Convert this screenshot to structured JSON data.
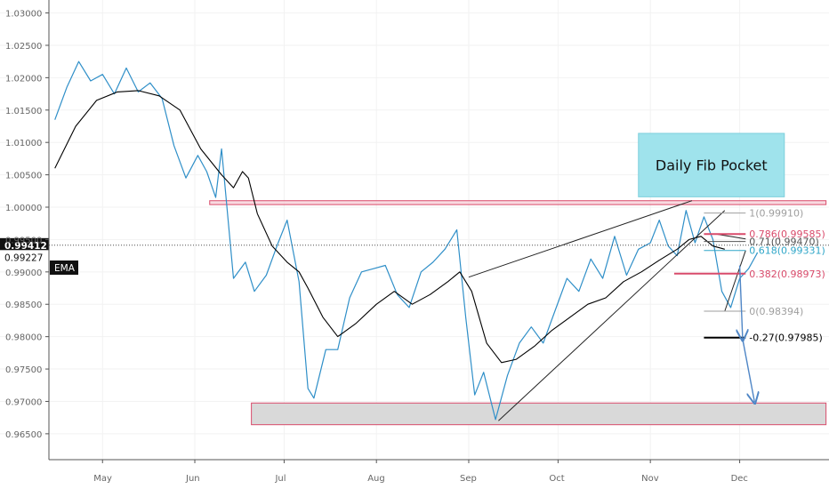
{
  "chart_data": {
    "type": "line",
    "title": "",
    "xlabel": "",
    "ylabel": "",
    "x_range": [
      "2019-04-13",
      "2019-12-31"
    ],
    "ylim": [
      0.961,
      1.032
    ],
    "y_ticks": [
      "1.03000",
      "1.02500",
      "1.02000",
      "1.01500",
      "1.01000",
      "1.00500",
      "1.00000",
      "0.99500",
      "0.99000",
      "0.98500",
      "0.98000",
      "0.97500",
      "0.97000",
      "0.96500"
    ],
    "x_ticks": [
      {
        "date": "2019-05-01",
        "label": "May"
      },
      {
        "date": "2019-06-01",
        "label": "Jun"
      },
      {
        "date": "2019-07-01",
        "label": "Jul"
      },
      {
        "date": "2019-08-01",
        "label": "Aug"
      },
      {
        "date": "2019-09-01",
        "label": "Sep"
      },
      {
        "date": "2019-10-01",
        "label": "Oct"
      },
      {
        "date": "2019-11-01",
        "label": "Nov"
      },
      {
        "date": "2019-12-01",
        "label": "Dec"
      }
    ],
    "series": [
      {
        "color": "#2f8fc8",
        "points": [
          [
            "2019-04-15",
            1.0135
          ],
          [
            "2019-04-19",
            1.0185
          ],
          [
            "2019-04-23",
            1.0225
          ],
          [
            "2019-04-27",
            1.0195
          ],
          [
            "2019-05-01",
            1.0205
          ],
          [
            "2019-05-05",
            1.0175
          ],
          [
            "2019-05-09",
            1.0215
          ],
          [
            "2019-05-13",
            1.0178
          ],
          [
            "2019-05-17",
            1.0192
          ],
          [
            "2019-05-21",
            1.0168
          ],
          [
            "2019-05-25",
            1.0095
          ],
          [
            "2019-05-29",
            1.0045
          ],
          [
            "2019-06-02",
            1.008
          ],
          [
            "2019-06-05",
            1.0055
          ],
          [
            "2019-06-08",
            1.0015
          ],
          [
            "2019-06-10",
            1.009
          ],
          [
            "2019-06-14",
            0.989
          ],
          [
            "2019-06-18",
            0.9915
          ],
          [
            "2019-06-21",
            0.987
          ],
          [
            "2019-06-25",
            0.9895
          ],
          [
            "2019-06-29",
            0.9945
          ],
          [
            "2019-07-02",
            0.998
          ],
          [
            "2019-07-06",
            0.9885
          ],
          [
            "2019-07-09",
            0.972
          ],
          [
            "2019-07-11",
            0.9705
          ],
          [
            "2019-07-15",
            0.978
          ],
          [
            "2019-07-19",
            0.978
          ],
          [
            "2019-07-23",
            0.986
          ],
          [
            "2019-07-27",
            0.99
          ],
          [
            "2019-07-31",
            0.9905
          ],
          [
            "2019-08-04",
            0.991
          ],
          [
            "2019-08-08",
            0.9865
          ],
          [
            "2019-08-12",
            0.9845
          ],
          [
            "2019-08-16",
            0.99
          ],
          [
            "2019-08-20",
            0.9915
          ],
          [
            "2019-08-24",
            0.9935
          ],
          [
            "2019-08-28",
            0.9965
          ],
          [
            "2019-08-31",
            0.983
          ],
          [
            "2019-09-03",
            0.971
          ],
          [
            "2019-09-06",
            0.9745
          ],
          [
            "2019-09-10",
            0.9672
          ],
          [
            "2019-09-14",
            0.974
          ],
          [
            "2019-09-18",
            0.979
          ],
          [
            "2019-09-22",
            0.9815
          ],
          [
            "2019-09-26",
            0.979
          ],
          [
            "2019-09-30",
            0.984
          ],
          [
            "2019-10-04",
            0.989
          ],
          [
            "2019-10-08",
            0.987
          ],
          [
            "2019-10-12",
            0.992
          ],
          [
            "2019-10-16",
            0.989
          ],
          [
            "2019-10-20",
            0.9955
          ],
          [
            "2019-10-24",
            0.9895
          ],
          [
            "2019-10-28",
            0.9935
          ],
          [
            "2019-11-01",
            0.9945
          ],
          [
            "2019-11-04",
            0.998
          ],
          [
            "2019-11-07",
            0.994
          ],
          [
            "2019-11-10",
            0.9925
          ],
          [
            "2019-11-13",
            0.9995
          ],
          [
            "2019-11-16",
            0.9945
          ],
          [
            "2019-11-19",
            0.9985
          ],
          [
            "2019-11-22",
            0.995
          ],
          [
            "2019-11-25",
            0.987
          ],
          [
            "2019-11-28",
            0.9845
          ],
          [
            "2019-12-01",
            0.989
          ],
          [
            "2019-12-04",
            0.9905
          ],
          [
            "2019-12-07",
            0.993
          ]
        ]
      },
      {
        "name": "EMA",
        "color": "#000000",
        "points": [
          [
            "2019-04-15",
            1.006
          ],
          [
            "2019-04-22",
            1.0125
          ],
          [
            "2019-04-29",
            1.0165
          ],
          [
            "2019-05-06",
            1.0178
          ],
          [
            "2019-05-13",
            1.018
          ],
          [
            "2019-05-20",
            1.0172
          ],
          [
            "2019-05-27",
            1.015
          ],
          [
            "2019-06-03",
            1.009
          ],
          [
            "2019-06-10",
            1.005
          ],
          [
            "2019-06-14",
            1.003
          ],
          [
            "2019-06-17",
            1.0055
          ],
          [
            "2019-06-19",
            1.0045
          ],
          [
            "2019-06-22",
            0.999
          ],
          [
            "2019-06-27",
            0.994
          ],
          [
            "2019-07-02",
            0.9915
          ],
          [
            "2019-07-06",
            0.99
          ],
          [
            "2019-07-09",
            0.9875
          ],
          [
            "2019-07-14",
            0.983
          ],
          [
            "2019-07-19",
            0.98
          ],
          [
            "2019-07-25",
            0.982
          ],
          [
            "2019-08-01",
            0.985
          ],
          [
            "2019-08-07",
            0.987
          ],
          [
            "2019-08-13",
            0.985
          ],
          [
            "2019-08-19",
            0.9865
          ],
          [
            "2019-08-25",
            0.9885
          ],
          [
            "2019-08-29",
            0.99
          ],
          [
            "2019-09-02",
            0.987
          ],
          [
            "2019-09-07",
            0.979
          ],
          [
            "2019-09-12",
            0.976
          ],
          [
            "2019-09-17",
            0.9765
          ],
          [
            "2019-09-23",
            0.9785
          ],
          [
            "2019-09-29",
            0.981
          ],
          [
            "2019-10-05",
            0.983
          ],
          [
            "2019-10-11",
            0.985
          ],
          [
            "2019-10-17",
            0.986
          ],
          [
            "2019-10-23",
            0.9885
          ],
          [
            "2019-10-29",
            0.99
          ],
          [
            "2019-11-04",
            0.9918
          ],
          [
            "2019-11-10",
            0.9935
          ],
          [
            "2019-11-14",
            0.995
          ],
          [
            "2019-11-18",
            0.9955
          ],
          [
            "2019-11-22",
            0.994
          ],
          [
            "2019-11-26",
            0.9935
          ]
        ]
      }
    ],
    "horizontal_levels": {
      "current_price": {
        "value": 0.99412,
        "label": "0.99412"
      },
      "second_price": {
        "value": 0.99227,
        "label": "0.99227"
      }
    },
    "zones": [
      {
        "from": "2019-06-06",
        "to": "2019-12-30",
        "low": 1.0004,
        "high": 1.001,
        "color": "#d94b6b"
      },
      {
        "from": "2019-06-20",
        "to": "2019-12-30",
        "low": 0.9664,
        "high": 0.96975,
        "color": "#d94b6b"
      }
    ],
    "fibonacci": {
      "from": "2019-11-19",
      "to": "2019-12-03",
      "levels": [
        {
          "value": 0.9991,
          "label": "1(0.99910)",
          "color": "#9e9e9e"
        },
        {
          "value": 0.99585,
          "label": "0.786(0.99585)",
          "color": "#d94b6b"
        },
        {
          "value": 0.9947,
          "label": "0.71(0.99470)",
          "color": "#555555"
        },
        {
          "value": 0.99331,
          "label": "0.618(0.99331)",
          "color": "#2fa6c8"
        },
        {
          "value": 0.98973,
          "label": "0.382(0.98973)",
          "color": "#d94b6b"
        },
        {
          "value": 0.98394,
          "label": "0(0.98394)",
          "color": "#9e9e9e"
        },
        {
          "value": 0.97985,
          "label": "-0.27(0.97985)",
          "color": "#000000"
        }
      ]
    },
    "annotations": [
      {
        "text": "Daily Fib Pocket",
        "from": "2019-10-28",
        "to": "2019-12-16",
        "low": 1.0016,
        "high": 1.0114,
        "fill": "#9fe3ec",
        "border": "#7dcfdc"
      }
    ],
    "trend_lines": [
      {
        "points": [
          [
            "2019-09-11",
            0.967
          ],
          [
            "2019-11-26",
            0.9995
          ]
        ]
      },
      {
        "points": [
          [
            "2019-09-01",
            0.9892
          ],
          [
            "2019-11-15",
            1.001
          ]
        ]
      },
      {
        "points": [
          [
            "2019-11-26",
            0.98394
          ],
          [
            "2019-12-03",
            0.99331
          ]
        ]
      },
      {
        "points": [
          [
            "2019-11-23",
            0.99585
          ],
          [
            "2019-11-29",
            0.9954
          ],
          [
            "2019-12-03",
            0.9951
          ]
        ]
      }
    ],
    "arrows": [
      {
        "from": [
          "2019-12-01",
          0.991
        ],
        "to": [
          "2019-12-02",
          0.9796
        ]
      },
      {
        "from": [
          "2019-12-02",
          0.9796
        ],
        "to": [
          "2019-12-06",
          0.9699
        ]
      }
    ],
    "legend": "EMA"
  }
}
